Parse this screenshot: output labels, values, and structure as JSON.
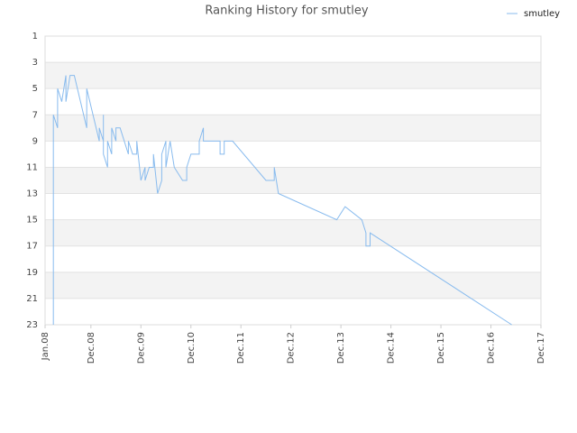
{
  "chart_data": {
    "type": "line",
    "title": "Ranking History for smutley",
    "x": [
      "2008-03",
      "2008-03",
      "2008-04",
      "2008-04",
      "2008-05",
      "2008-06",
      "2008-06",
      "2008-07",
      "2008-08",
      "2008-11",
      "2008-11",
      "2009-02",
      "2009-02",
      "2009-03",
      "2009-03",
      "2009-03",
      "2009-04",
      "2009-04",
      "2009-05",
      "2009-05",
      "2009-06",
      "2009-06",
      "2009-07",
      "2009-09",
      "2009-09",
      "2009-10",
      "2009-11",
      "2009-11",
      "2009-12",
      "2010-01",
      "2010-01",
      "2010-02",
      "2010-03",
      "2010-03",
      "2010-04",
      "2010-05",
      "2010-05",
      "2010-06",
      "2010-06",
      "2010-07",
      "2010-08",
      "2010-10",
      "2010-11",
      "2010-11",
      "2010-12",
      "2011-02",
      "2011-02",
      "2011-03",
      "2011-03",
      "2011-05",
      "2011-07",
      "2011-07",
      "2011-08",
      "2011-08",
      "2011-10",
      "2012-06",
      "2012-08",
      "2012-08",
      "2012-09",
      "2013-11",
      "2014-01",
      "2014-05",
      "2014-06",
      "2014-06",
      "2014-07",
      "2014-07",
      "2017-05"
    ],
    "series": [
      {
        "name": "smutley",
        "color": "#88bbee",
        "values": [
          23,
          7,
          8,
          5,
          6,
          4,
          6,
          4,
          4,
          8,
          5,
          9,
          8,
          9,
          7,
          10,
          11,
          9,
          10,
          8,
          9,
          8,
          8,
          10,
          9,
          10,
          10,
          9,
          12,
          11,
          12,
          11,
          11,
          10,
          13,
          12,
          10,
          9,
          11,
          9,
          11,
          12,
          12,
          11,
          10,
          10,
          9,
          8,
          9,
          9,
          9,
          10,
          10,
          9,
          9,
          12,
          12,
          11,
          13,
          15,
          14,
          15,
          16,
          17,
          17,
          16,
          23
        ]
      }
    ],
    "xlim": [
      "2008-01",
      "2017-12"
    ],
    "xticks": [
      {
        "value": "2008-01",
        "label": "Jan.08"
      },
      {
        "value": "2008-12",
        "label": "Dec.08"
      },
      {
        "value": "2009-12",
        "label": "Dec.09"
      },
      {
        "value": "2010-12",
        "label": "Dec.10"
      },
      {
        "value": "2011-12",
        "label": "Dec.11"
      },
      {
        "value": "2012-12",
        "label": "Dec.12"
      },
      {
        "value": "2013-12",
        "label": "Dec.13"
      },
      {
        "value": "2014-12",
        "label": "Dec.14"
      },
      {
        "value": "2015-12",
        "label": "Dec.15"
      },
      {
        "value": "2016-12",
        "label": "Dec.16"
      },
      {
        "value": "2017-12",
        "label": "Dec.17"
      }
    ],
    "ylim": [
      23,
      1
    ],
    "yticks": [
      1,
      3,
      5,
      7,
      9,
      11,
      13,
      15,
      17,
      19,
      21,
      23
    ],
    "grid": true,
    "legend": "top-right"
  }
}
